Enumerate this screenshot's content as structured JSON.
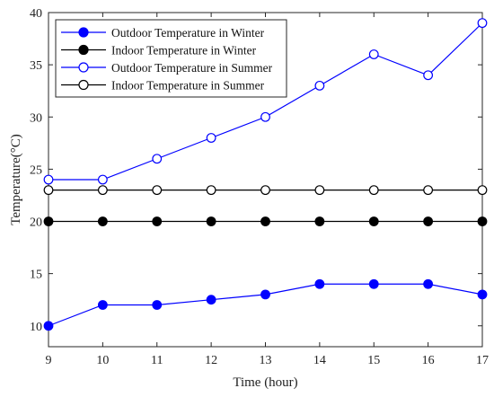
{
  "chart_data": {
    "type": "line",
    "xlabel": "Time (hour)",
    "ylabel": "Temperature(°C)",
    "xlim": [
      9,
      17
    ],
    "ylim": [
      8,
      40
    ],
    "x": [
      9,
      10,
      11,
      12,
      13,
      14,
      15,
      16,
      17
    ],
    "xticks": [
      9,
      10,
      11,
      12,
      13,
      14,
      15,
      16,
      17
    ],
    "yticks": [
      10,
      15,
      20,
      25,
      30,
      35,
      40
    ],
    "grid": false,
    "legend_position": "top-left",
    "series": [
      {
        "name": "Outdoor Temperature in Winter",
        "values": [
          10,
          12,
          12,
          12.5,
          13,
          14,
          14,
          14,
          13
        ],
        "color": "#0000ff",
        "marker": "filled-circle"
      },
      {
        "name": "Indoor Temperature in Winter",
        "values": [
          20,
          20,
          20,
          20,
          20,
          20,
          20,
          20,
          20
        ],
        "color": "#000000",
        "marker": "filled-circle"
      },
      {
        "name": "Outdoor Temperature in Summer",
        "values": [
          24,
          24,
          26,
          28,
          30,
          33,
          36,
          34,
          39
        ],
        "color": "#0000ff",
        "marker": "open-circle"
      },
      {
        "name": "Indoor Temperature in Summer",
        "values": [
          23,
          23,
          23,
          23,
          23,
          23,
          23,
          23,
          23
        ],
        "color": "#000000",
        "marker": "open-circle"
      }
    ]
  }
}
